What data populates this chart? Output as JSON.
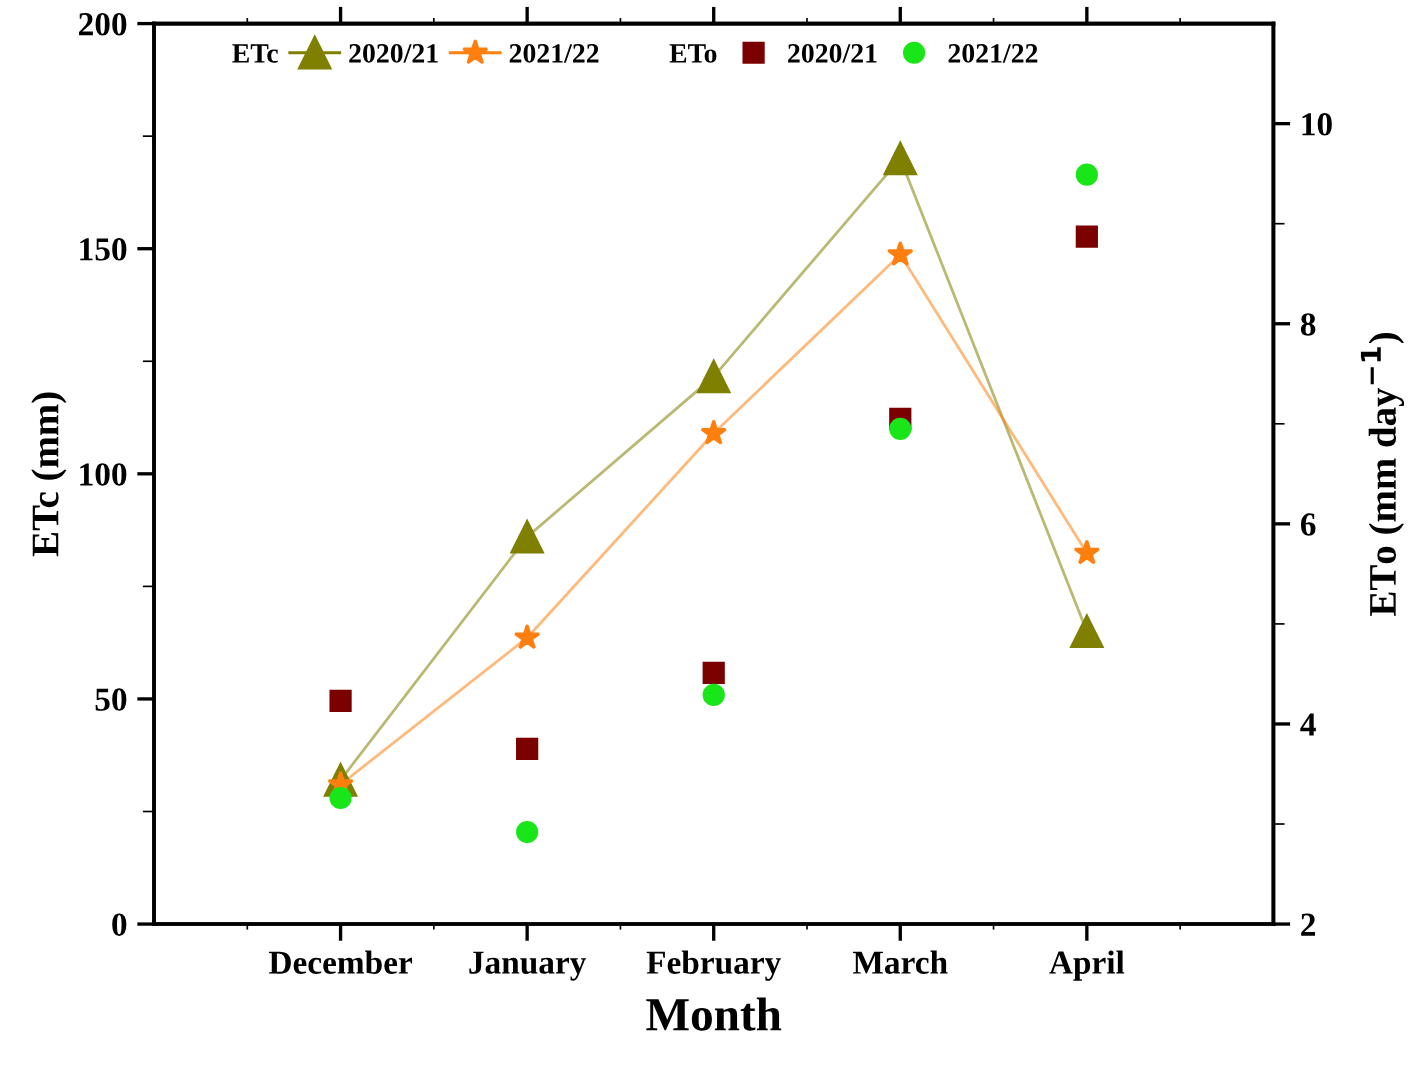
{
  "chart_data": {
    "type": "line",
    "xlabel": "Month",
    "ylabel": "ETc (mm)",
    "y2label": "ETo (mm day$^{−1}$)",
    "categories": [
      "December",
      "January",
      "February",
      "March",
      "April"
    ],
    "series": [
      {
        "name": "2020/21",
        "marker": "triangle",
        "color": "#7f7f00",
        "values": [
          32,
          86,
          121.6,
          170,
          65
        ]
      },
      {
        "name": "2021/22",
        "marker": "star",
        "color": "#ff7f0e",
        "values": [
          31,
          63.6,
          109,
          148.7,
          82.4
        ]
      },
      {
        "name": "2020/21",
        "type": "scatter",
        "marker": "square",
        "color": "#7b0000",
        "axis": "y2",
        "values": [
          4.23,
          3.75,
          4.51,
          7.05,
          8.87
        ]
      },
      {
        "name": "2021/22",
        "type": "scatter",
        "marker": "circle",
        "color": "#19e619",
        "axis": "y2",
        "values": [
          3.26,
          2.92,
          4.29,
          6.95,
          9.49
        ]
      }
    ],
    "annotations": [
      "ETc",
      "ETo"
    ],
    "ylim": [
      0,
      200
    ],
    "yticks": [
      0,
      50,
      100,
      150,
      200
    ],
    "y2lim": [
      2,
      11
    ],
    "y2ticks": [
      2,
      4,
      6,
      8,
      10
    ],
    "legend": "top left",
    "grid": false
  }
}
